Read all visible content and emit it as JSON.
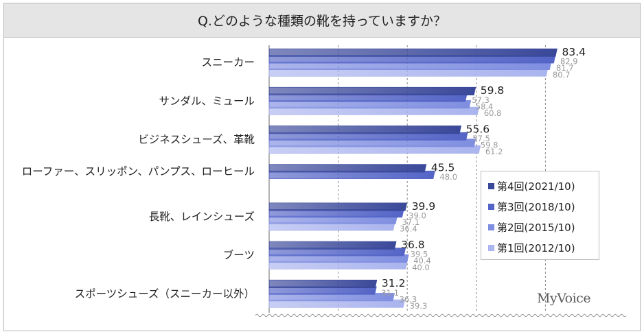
{
  "title": "Q.どのような種類の靴を持っていますか？",
  "brand": "MyVoice",
  "colors": {
    "series": [
      "#3a4899",
      "#5464c6",
      "#7f8ee0",
      "#aab4ee"
    ],
    "value_label_main": "#222222",
    "value_label_faded": "#9a9a9a",
    "grid": "#888888"
  },
  "chart_data": {
    "type": "bar",
    "orientation": "horizontal",
    "xlim": [
      0,
      100
    ],
    "grid": true,
    "grid_values": [
      20,
      40,
      60,
      80
    ],
    "legend_position": "right",
    "categories": [
      "スニーカー",
      "サンダル、ミュール",
      "ビジネスシューズ、革靴",
      "ローファー、スリッポン、パンプス、ローヒール",
      "長靴、レインシューズ",
      "ブーツ",
      "スポーツシューズ（スニーカー以外）"
    ],
    "series": [
      {
        "name": "第4回(2021/10)",
        "values": [
          83.4,
          59.8,
          55.6,
          45.5,
          39.9,
          36.8,
          31.2
        ]
      },
      {
        "name": "第3回(2018/10)",
        "values": [
          82.9,
          57.3,
          57.5,
          48.0,
          39.0,
          39.5,
          31.1
        ]
      },
      {
        "name": "第2回(2015/10)",
        "values": [
          81.7,
          58.4,
          59.8,
          null,
          37.1,
          40.4,
          36.3
        ]
      },
      {
        "name": "第1回(2012/10)",
        "values": [
          80.7,
          60.8,
          61.2,
          null,
          36.4,
          40.0,
          39.3
        ]
      }
    ]
  }
}
